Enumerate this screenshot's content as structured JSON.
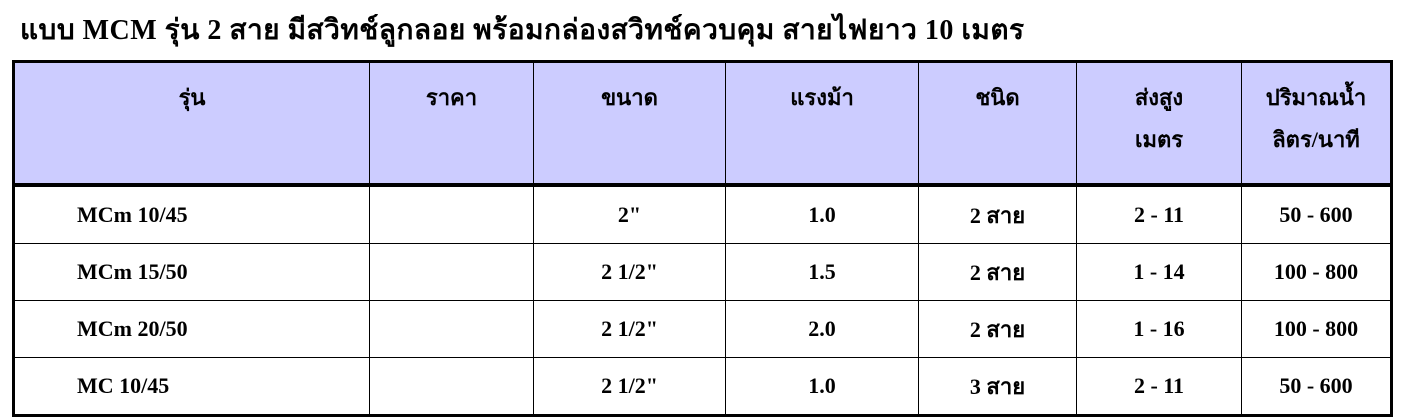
{
  "title": "แบบ  MCM  รุ่น  2 สาย มีสวิทช์ลูกลอย พร้อมกล่องสวิทช์ควบคุม สายไฟยาว  10 เมตร",
  "table": {
    "header_color": "#ccccff",
    "columns": [
      {
        "line1": "รุ่น",
        "line2": ""
      },
      {
        "line1": "ราคา",
        "line2": ""
      },
      {
        "line1": "ขนาด",
        "line2": ""
      },
      {
        "line1": "แรงม้า",
        "line2": ""
      },
      {
        "line1": "ชนิด",
        "line2": ""
      },
      {
        "line1": "ส่งสูง",
        "line2": "เมตร"
      },
      {
        "line1": "ปริมาณน้ำ",
        "line2": "ลิตร/นาที"
      }
    ],
    "rows": [
      [
        "MCm 10/45",
        "",
        "2\"",
        "1.0",
        "2 สาย",
        "2 - 11",
        "50 - 600"
      ],
      [
        "MCm 15/50",
        "",
        "2 1/2\"",
        "1.5",
        "2 สาย",
        "1 - 14",
        "100 - 800"
      ],
      [
        "MCm 20/50",
        "",
        "2 1/2\"",
        "2.0",
        "2 สาย",
        "1 - 16",
        "100 - 800"
      ],
      [
        "MC 10/45",
        "",
        "2 1/2\"",
        "1.0",
        "3 สาย",
        "2 - 11",
        "50 - 600"
      ]
    ]
  }
}
